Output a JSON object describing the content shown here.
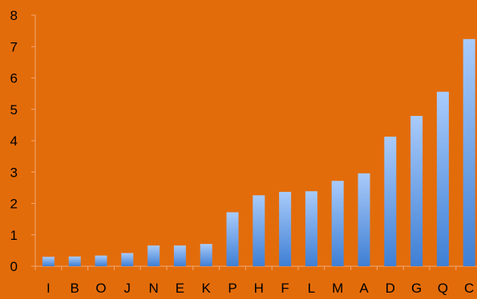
{
  "chart_data": {
    "type": "bar",
    "categories": [
      "I",
      "B",
      "O",
      "J",
      "N",
      "E",
      "K",
      "P",
      "H",
      "F",
      "L",
      "M",
      "A",
      "D",
      "G",
      "Q",
      "C"
    ],
    "values": [
      0.3,
      0.31,
      0.34,
      0.42,
      0.66,
      0.66,
      0.71,
      1.72,
      2.26,
      2.37,
      2.39,
      2.72,
      2.96,
      4.13,
      4.79,
      5.56,
      7.24
    ],
    "title": "",
    "xlabel": "",
    "ylabel": "",
    "ylim": [
      0,
      8
    ],
    "yticks": [
      "0",
      "1",
      "2",
      "3",
      "4",
      "5",
      "6",
      "7",
      "8"
    ],
    "grid": false,
    "legend": "none",
    "colors": {
      "background": "#E36C0A",
      "bar_top": "#A9CBFA",
      "bar_bottom": "#3F7FD4",
      "axis": "#F0A877"
    }
  }
}
